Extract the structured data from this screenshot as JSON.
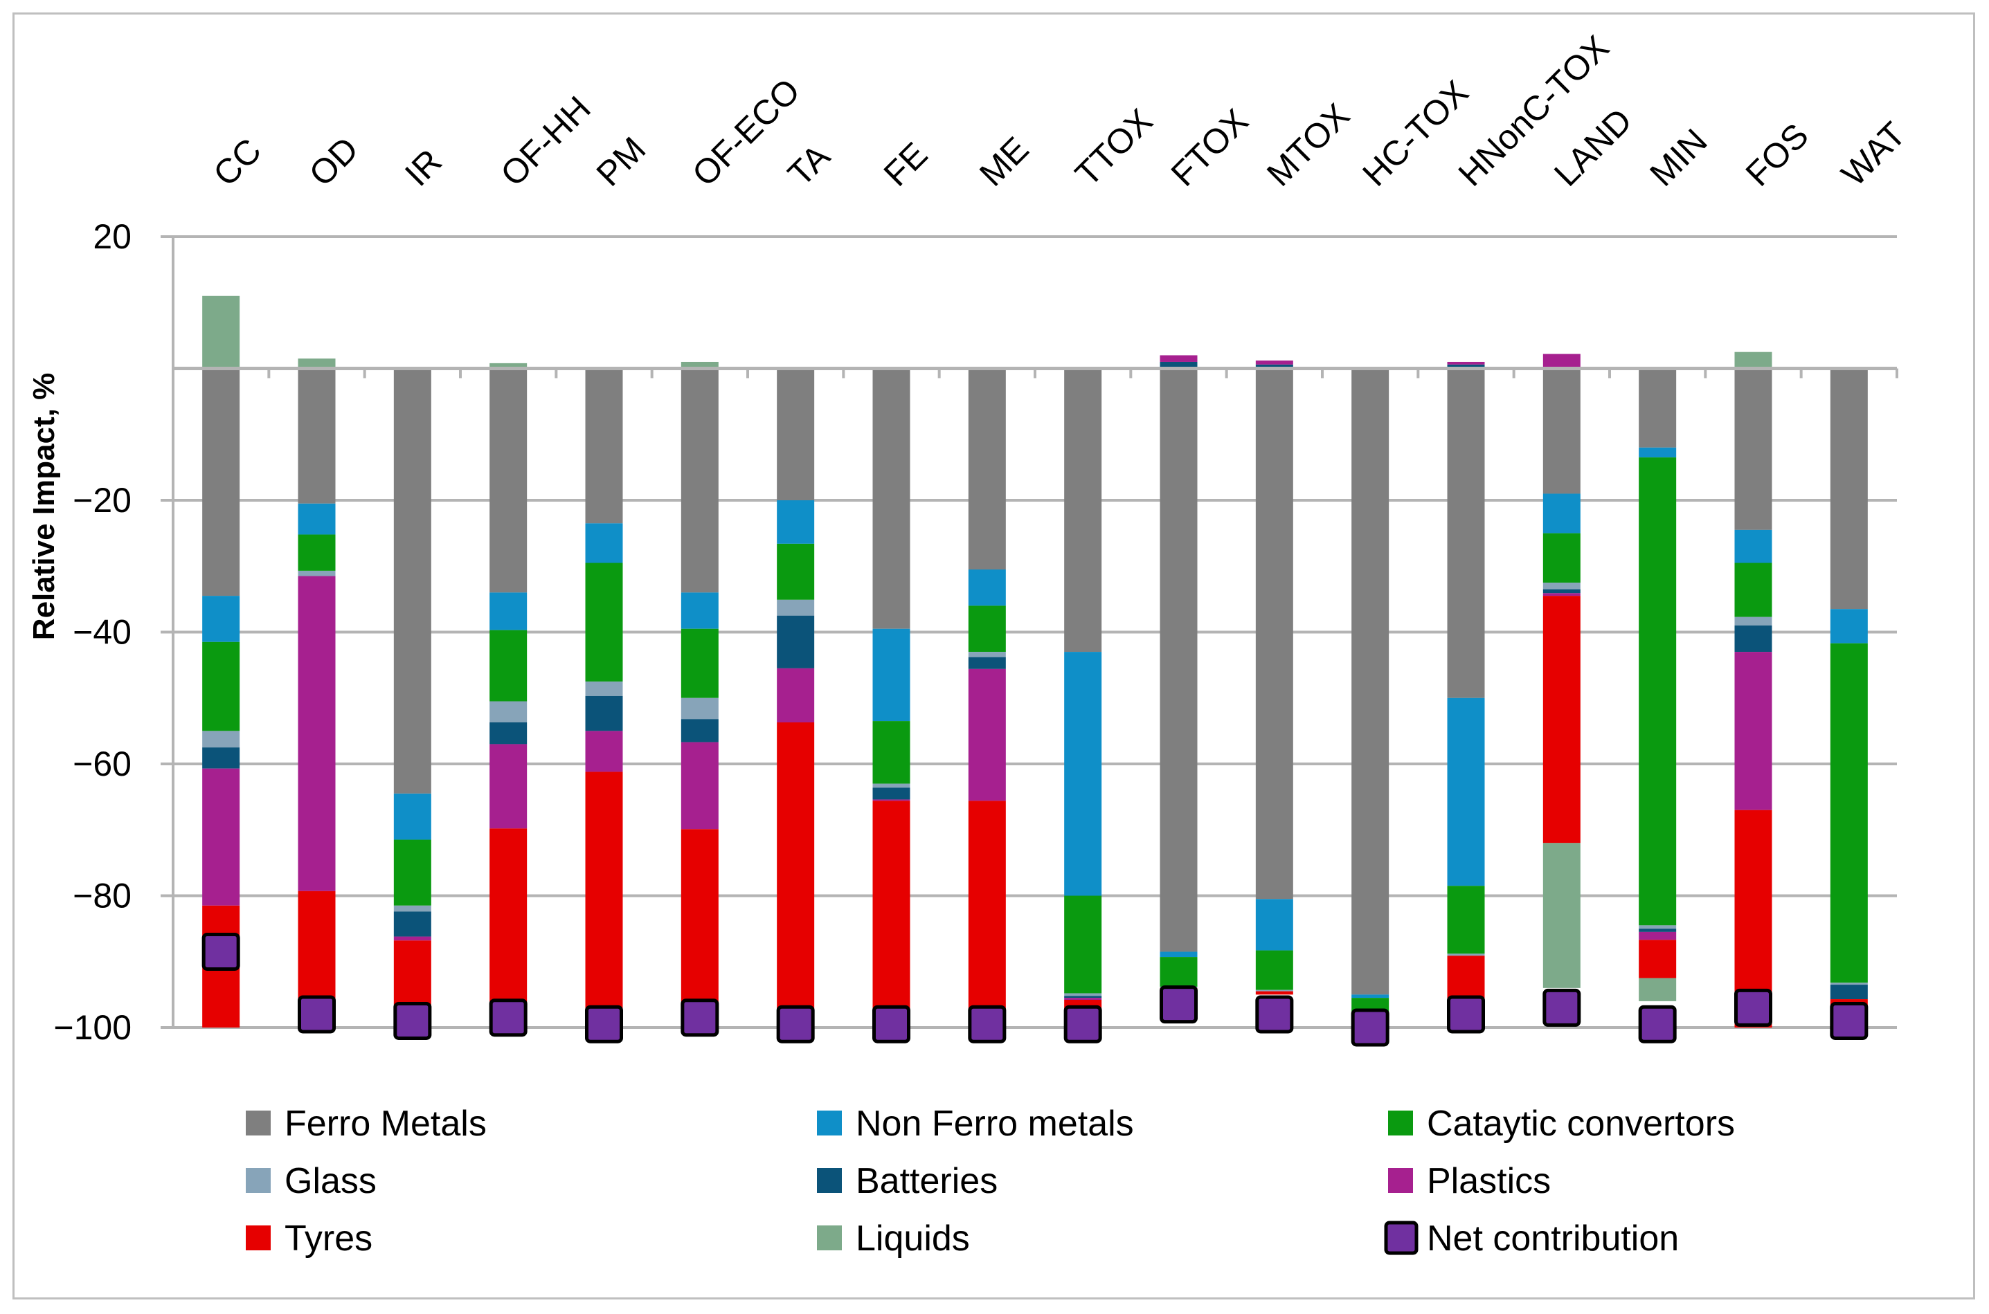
{
  "chart_data": {
    "type": "bar",
    "stacked": true,
    "title": "",
    "xlabel": "",
    "ylabel": "Relative Impact, %",
    "ylim": [
      -100,
      20
    ],
    "yticks": [
      20,
      -20,
      -40,
      -60,
      -80,
      -100
    ],
    "grid": true,
    "categories": [
      "CC",
      "OD",
      "IR",
      "OF-HH",
      "PM",
      "OF-ECO",
      "TA",
      "FE",
      "ME",
      "TTOX",
      "FTOX",
      "MTOX",
      "HC-TOX",
      "HNonC-TOX",
      "LAND",
      "MIN",
      "FOS",
      "WAT"
    ],
    "series": [
      {
        "name": "Ferro Metals",
        "color": "#7f7f7f",
        "values": [
          -34.5,
          -20.5,
          -64.5,
          -34,
          -23.5,
          -34,
          -20,
          -39.5,
          -30.5,
          -43,
          -88.5,
          -80.5,
          -95,
          -50,
          -19,
          -12,
          -24.5,
          -36.5
        ]
      },
      {
        "name": "Non Ferro metals",
        "color": "#0f8fc8",
        "values": [
          -7,
          -4.7,
          -7,
          -5.7,
          -6,
          -5.5,
          -6.6,
          -14,
          -5.5,
          -37,
          -0.8,
          -7.8,
          -0.5,
          -28.5,
          -6,
          -1.5,
          -5,
          -5.2
        ]
      },
      {
        "name": "Cataytic convertors",
        "color": "#0a9a10",
        "values": [
          -13.5,
          -5.5,
          -10,
          -10.8,
          -18,
          -10.5,
          -8.5,
          -9.5,
          -7,
          -14.8,
          -4.5,
          -6,
          -3,
          -10.3,
          -7.5,
          -71,
          -8.2,
          -51.5
        ]
      },
      {
        "name": "Glass",
        "color": "#87a4b9",
        "values": [
          -2.5,
          -0.8,
          -0.9,
          -3.2,
          -2.2,
          -3.2,
          -2.4,
          -0.6,
          -0.8,
          -0.4,
          -0.2,
          -0.2,
          0,
          -0.3,
          -1,
          -0.5,
          -1.3,
          -0.3
        ]
      },
      {
        "name": "Batteries",
        "color": "#0b5379",
        "values": [
          -3.2,
          0,
          -3.8,
          -3.3,
          -5.3,
          -3.5,
          -8,
          -1.8,
          -1.8,
          -0.3,
          0,
          0,
          0,
          0,
          -0.6,
          -0.5,
          -4,
          -2.2
        ]
      },
      {
        "name": "Plastics",
        "color": "#a6208f",
        "values": [
          -20.8,
          -47.8,
          -0.6,
          -12.8,
          -6.2,
          -13.2,
          -8.2,
          -0.2,
          -20,
          -0.3,
          0,
          0,
          0,
          0,
          -0.4,
          -1.2,
          -24,
          0
        ]
      },
      {
        "name": "Tyres",
        "color": "#e60000",
        "values": [
          -18.5,
          -20.7,
          -10.5,
          -30.2,
          -38.8,
          -30.1,
          -46.3,
          -34.4,
          -34.4,
          -3.2,
          -0.5,
          -0.5,
          -1.5,
          -6.9,
          -37.5,
          -5.8,
          -33,
          -3.8
        ]
      },
      {
        "name": "Liquids",
        "color": "#7daa8a",
        "values": [
          11,
          1.5,
          0,
          0.8,
          0,
          1,
          0,
          0,
          0,
          0,
          0,
          0,
          -0.2,
          0,
          -22,
          -3.5,
          2.5,
          0
        ]
      }
    ],
    "positive_segments": [
      {
        "category": "FTOX",
        "series": "Batteries",
        "value": 1.0
      },
      {
        "category": "FTOX",
        "series": "Plastics",
        "value": 1.0
      },
      {
        "category": "MTOX",
        "series": "Batteries",
        "value": 0.6
      },
      {
        "category": "MTOX",
        "series": "Plastics",
        "value": 0.6
      },
      {
        "category": "HNonC-TOX",
        "series": "Batteries",
        "value": 0.6
      },
      {
        "category": "HNonC-TOX",
        "series": "Plastics",
        "value": 0.4
      },
      {
        "category": "LAND",
        "series": "Plastics",
        "value": 2.2
      }
    ],
    "net_contribution": {
      "name": "Net contribution",
      "color": "#7030a0",
      "values": [
        -88.5,
        -98,
        -99,
        -98.5,
        -99.5,
        -98.5,
        -99.5,
        -99.5,
        -99.5,
        -99.5,
        -96.5,
        -98,
        -100,
        -98,
        -97,
        -99.5,
        -97,
        -99
      ]
    }
  },
  "legend": {
    "items": [
      {
        "label": "Ferro Metals",
        "color": "#7f7f7f",
        "shape": "square"
      },
      {
        "label": "Non Ferro metals",
        "color": "#0f8fc8",
        "shape": "square"
      },
      {
        "label": "Cataytic convertors",
        "color": "#0a9a10",
        "shape": "square"
      },
      {
        "label": "Glass",
        "color": "#87a4b9",
        "shape": "square"
      },
      {
        "label": "Batteries",
        "color": "#0b5379",
        "shape": "square"
      },
      {
        "label": "Plastics",
        "color": "#a6208f",
        "shape": "square"
      },
      {
        "label": "Tyres",
        "color": "#e60000",
        "shape": "square"
      },
      {
        "label": "Liquids",
        "color": "#7daa8a",
        "shape": "square"
      },
      {
        "label": "Net contribution",
        "color": "#7030a0",
        "shape": "marker"
      }
    ]
  }
}
